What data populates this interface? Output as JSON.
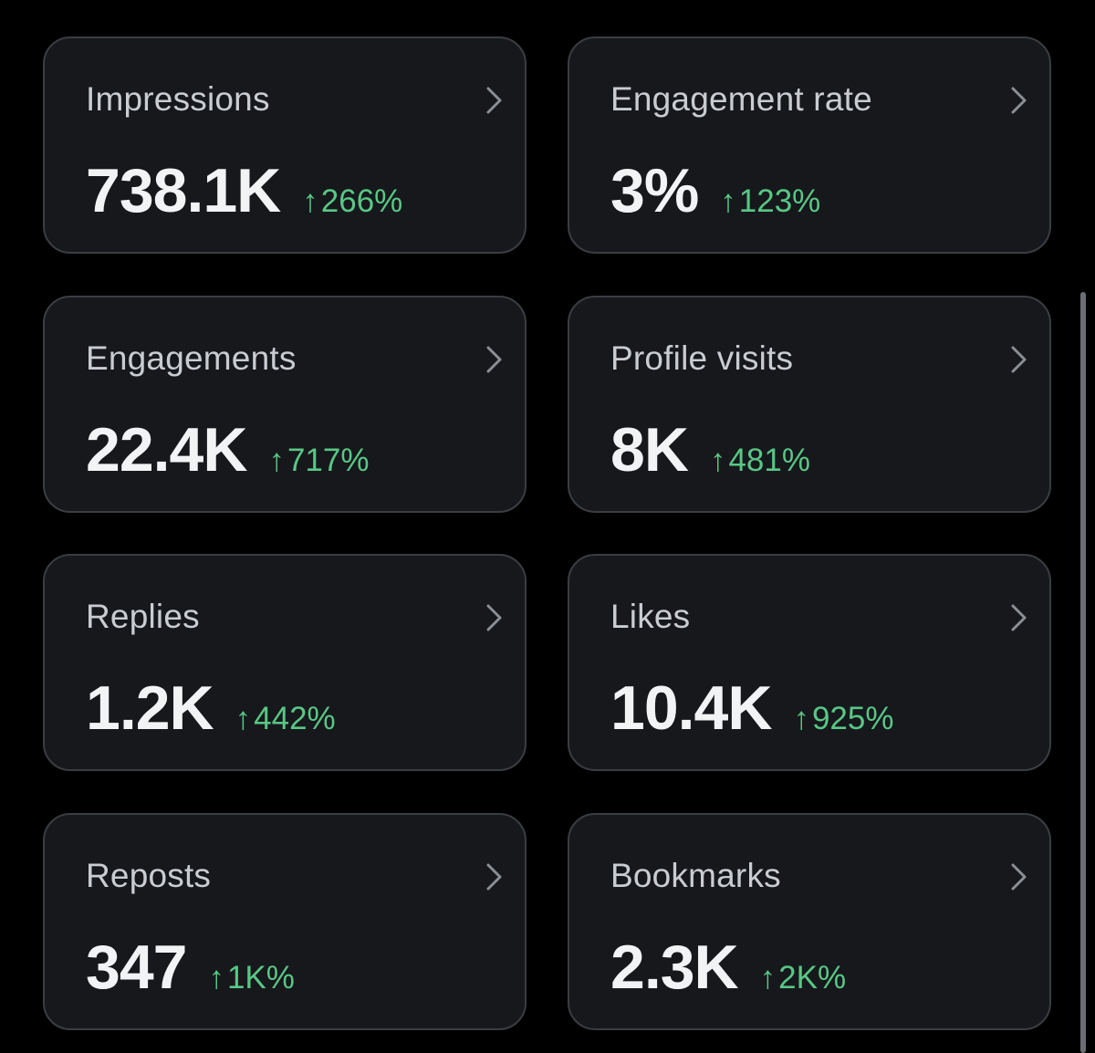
{
  "theme": {
    "background": "#000000",
    "card": "#16181c",
    "border": "#3a3d42",
    "positive": "#59c785"
  },
  "icons": {
    "chevron": "chevron-right-icon",
    "trend": "arrow-up-icon"
  },
  "metrics": [
    {
      "label": "Impressions",
      "value": "738.1K",
      "arrow": "↑",
      "change": "266%"
    },
    {
      "label": "Engagement rate",
      "value": "3%",
      "arrow": "↑",
      "change": "123%"
    },
    {
      "label": "Engagements",
      "value": "22.4K",
      "arrow": "↑",
      "change": "717%"
    },
    {
      "label": "Profile visits",
      "value": "8K",
      "arrow": "↑",
      "change": "481%"
    },
    {
      "label": "Replies",
      "value": "1.2K",
      "arrow": "↑",
      "change": "442%"
    },
    {
      "label": "Likes",
      "value": "10.4K",
      "arrow": "↑",
      "change": "925%"
    },
    {
      "label": "Reposts",
      "value": "347",
      "arrow": "↑",
      "change": "1K%"
    },
    {
      "label": "Bookmarks",
      "value": "2.3K",
      "arrow": "↑",
      "change": "2K%"
    }
  ]
}
